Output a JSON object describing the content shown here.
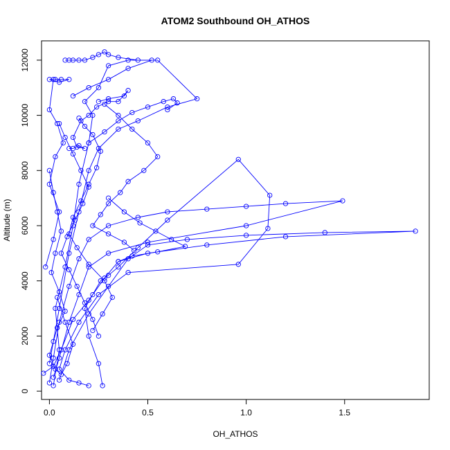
{
  "chart_data": {
    "type": "line",
    "title": "ATOM2 Southbound OH_ATHOS",
    "xlabel": "OH_ATHOS",
    "ylabel": "Altitude (m)",
    "xlim": [
      -0.04,
      1.93
    ],
    "ylim": [
      -300,
      12700
    ],
    "xticks": [
      0,
      0.5,
      1.0,
      1.5
    ],
    "xtick_labels": [
      "0.0",
      "0.5",
      "1.0",
      "1.5"
    ],
    "yticks": [
      0,
      2000,
      4000,
      6000,
      8000,
      10000,
      12000
    ],
    "ytick_labels": [
      "0",
      "2000",
      "4000",
      "6000",
      "8000",
      "10000",
      "12000"
    ],
    "grid": false,
    "marker": "open-circle",
    "color": "#0000ff",
    "series": [
      {
        "x": [
          0.02,
          0.05,
          0.03,
          0.08,
          0.12,
          0.15,
          0.2,
          0.22,
          0.18,
          0.25,
          0.3,
          0.4,
          0.55,
          0.75,
          0.6,
          0.45,
          0.35,
          0.25,
          0.2,
          0.15,
          0.1,
          0.05,
          0.0
        ],
        "y": [
          200,
          1500,
          3000,
          4500,
          6000,
          7500,
          9000,
          10000,
          10500,
          11000,
          11800,
          12000,
          12000,
          10600,
          10300,
          9800,
          9500,
          8800,
          8000,
          6500,
          5000,
          3000,
          1000
        ]
      },
      {
        "x": [
          0.27,
          0.25,
          0.2,
          0.18,
          0.22,
          0.26,
          0.3,
          0.35,
          0.45,
          0.6,
          0.96,
          1.12,
          1.11,
          0.96,
          0.4,
          0.25,
          0.15,
          0.08,
          0.05,
          0.1,
          0.15,
          0.2
        ],
        "y": [
          200,
          1000,
          2000,
          3000,
          3500,
          4000,
          4200,
          4500,
          5200,
          6200,
          8400,
          7100,
          5900,
          4600,
          4300,
          3500,
          2500,
          1500,
          800,
          400,
          300,
          200
        ]
      },
      {
        "x": [
          0.0,
          0.02,
          0.05,
          0.1,
          0.15,
          0.2,
          0.3,
          0.45,
          0.6,
          0.8,
          1.0,
          1.2,
          1.49,
          1.0,
          0.5,
          0.3,
          0.2,
          0.15,
          0.1,
          0.05,
          0.02
        ],
        "y": [
          300,
          1200,
          2500,
          3800,
          4800,
          5500,
          6000,
          6300,
          6500,
          6600,
          6700,
          6800,
          6900,
          6000,
          5400,
          5000,
          4500,
          3500,
          2500,
          1200,
          500
        ]
      },
      {
        "x": [
          0.05,
          0.1,
          0.2,
          0.3,
          0.4,
          0.5,
          0.7,
          1.0,
          1.4,
          1.86,
          1.2,
          0.8,
          0.5,
          0.35,
          0.28,
          0.2,
          0.12,
          0.06,
          0.02,
          -0.03
        ],
        "y": [
          400,
          1500,
          2800,
          3800,
          4800,
          5300,
          5500,
          5650,
          5750,
          5800,
          5600,
          5300,
          5000,
          4700,
          4100,
          3300,
          2600,
          1500,
          900,
          650
        ]
      },
      {
        "x": [
          -0.02,
          0.02,
          0.05,
          0.0,
          0.03,
          0.07,
          0.04,
          0.0,
          0.02,
          0.06,
          0.1,
          0.05,
          0.0,
          0.03
        ],
        "y": [
          4500,
          5500,
          6500,
          7500,
          8500,
          9000,
          9700,
          10200,
          11300,
          11300,
          11300,
          11200,
          11300,
          11300
        ]
      },
      {
        "x": [
          0.1,
          0.12,
          0.15,
          0.18,
          0.14,
          0.12,
          0.16,
          0.2,
          0.24,
          0.3,
          0.35,
          0.4,
          0.38,
          0.3,
          0.25
        ],
        "y": [
          8800,
          8800,
          8900,
          8800,
          8850,
          9200,
          9800,
          10000,
          10300,
          10500,
          10500,
          10900,
          10700,
          10600,
          10500
        ]
      },
      {
        "x": [
          0.08,
          0.1,
          0.12,
          0.15,
          0.18,
          0.22,
          0.25,
          0.28,
          0.3,
          0.35,
          0.45,
          0.52,
          0.4,
          0.3,
          0.2,
          0.12
        ],
        "y": [
          12000,
          12000,
          12000,
          12000,
          12000,
          12100,
          12200,
          12300,
          12200,
          12100,
          12000,
          12000,
          11700,
          11300,
          11000,
          10700
        ]
      },
      {
        "x": [
          0.0,
          0.02,
          0.04,
          0.06,
          0.03,
          0.01,
          0.05,
          0.08,
          0.04,
          0.02,
          0.0,
          0.03,
          0.06,
          0.09,
          0.12,
          0.08,
          0.04
        ],
        "y": [
          8000,
          7200,
          6500,
          5800,
          5000,
          4300,
          3600,
          2900,
          2300,
          1800,
          1300,
          800,
          600,
          1000,
          1700,
          2500,
          3400
        ]
      },
      {
        "x": [
          0.15,
          0.18,
          0.22,
          0.26,
          0.24,
          0.2,
          0.16,
          0.12,
          0.1,
          0.14,
          0.2,
          0.28,
          0.32,
          0.27,
          0.22
        ],
        "y": [
          9900,
          9600,
          9300,
          8700,
          8100,
          7500,
          6900,
          6300,
          5700,
          5200,
          4600,
          4000,
          3400,
          2800,
          2200
        ]
      },
      {
        "x": [
          0.28,
          0.35,
          0.42,
          0.5,
          0.55,
          0.48,
          0.4,
          0.36,
          0.3,
          0.26,
          0.22,
          0.3,
          0.38,
          0.43
        ],
        "y": [
          10400,
          10000,
          9500,
          9000,
          8500,
          8000,
          7600,
          7200,
          6800,
          6400,
          6000,
          5700,
          5400,
          5100
        ]
      },
      {
        "x": [
          0.05,
          0.08,
          0.12,
          0.16,
          0.2,
          0.17,
          0.13,
          0.09,
          0.06,
          0.1,
          0.14,
          0.18,
          0.22,
          0.25
        ],
        "y": [
          9700,
          9200,
          8600,
          8000,
          7400,
          6800,
          6200,
          5600,
          5000,
          4400,
          3800,
          3200,
          2600,
          2000
        ]
      },
      {
        "x": [
          0.2,
          0.28,
          0.35,
          0.42,
          0.5,
          0.58,
          0.63,
          0.65,
          0.6
        ],
        "y": [
          9000,
          9400,
          9800,
          10100,
          10300,
          10500,
          10600,
          10450,
          10200
        ]
      },
      {
        "x": [
          0.3,
          0.38,
          0.46,
          0.54,
          0.62,
          0.69,
          0.55,
          0.42,
          0.35
        ],
        "y": [
          7000,
          6500,
          6100,
          5800,
          5500,
          5250,
          5050,
          4900,
          4700
        ]
      }
    ]
  }
}
